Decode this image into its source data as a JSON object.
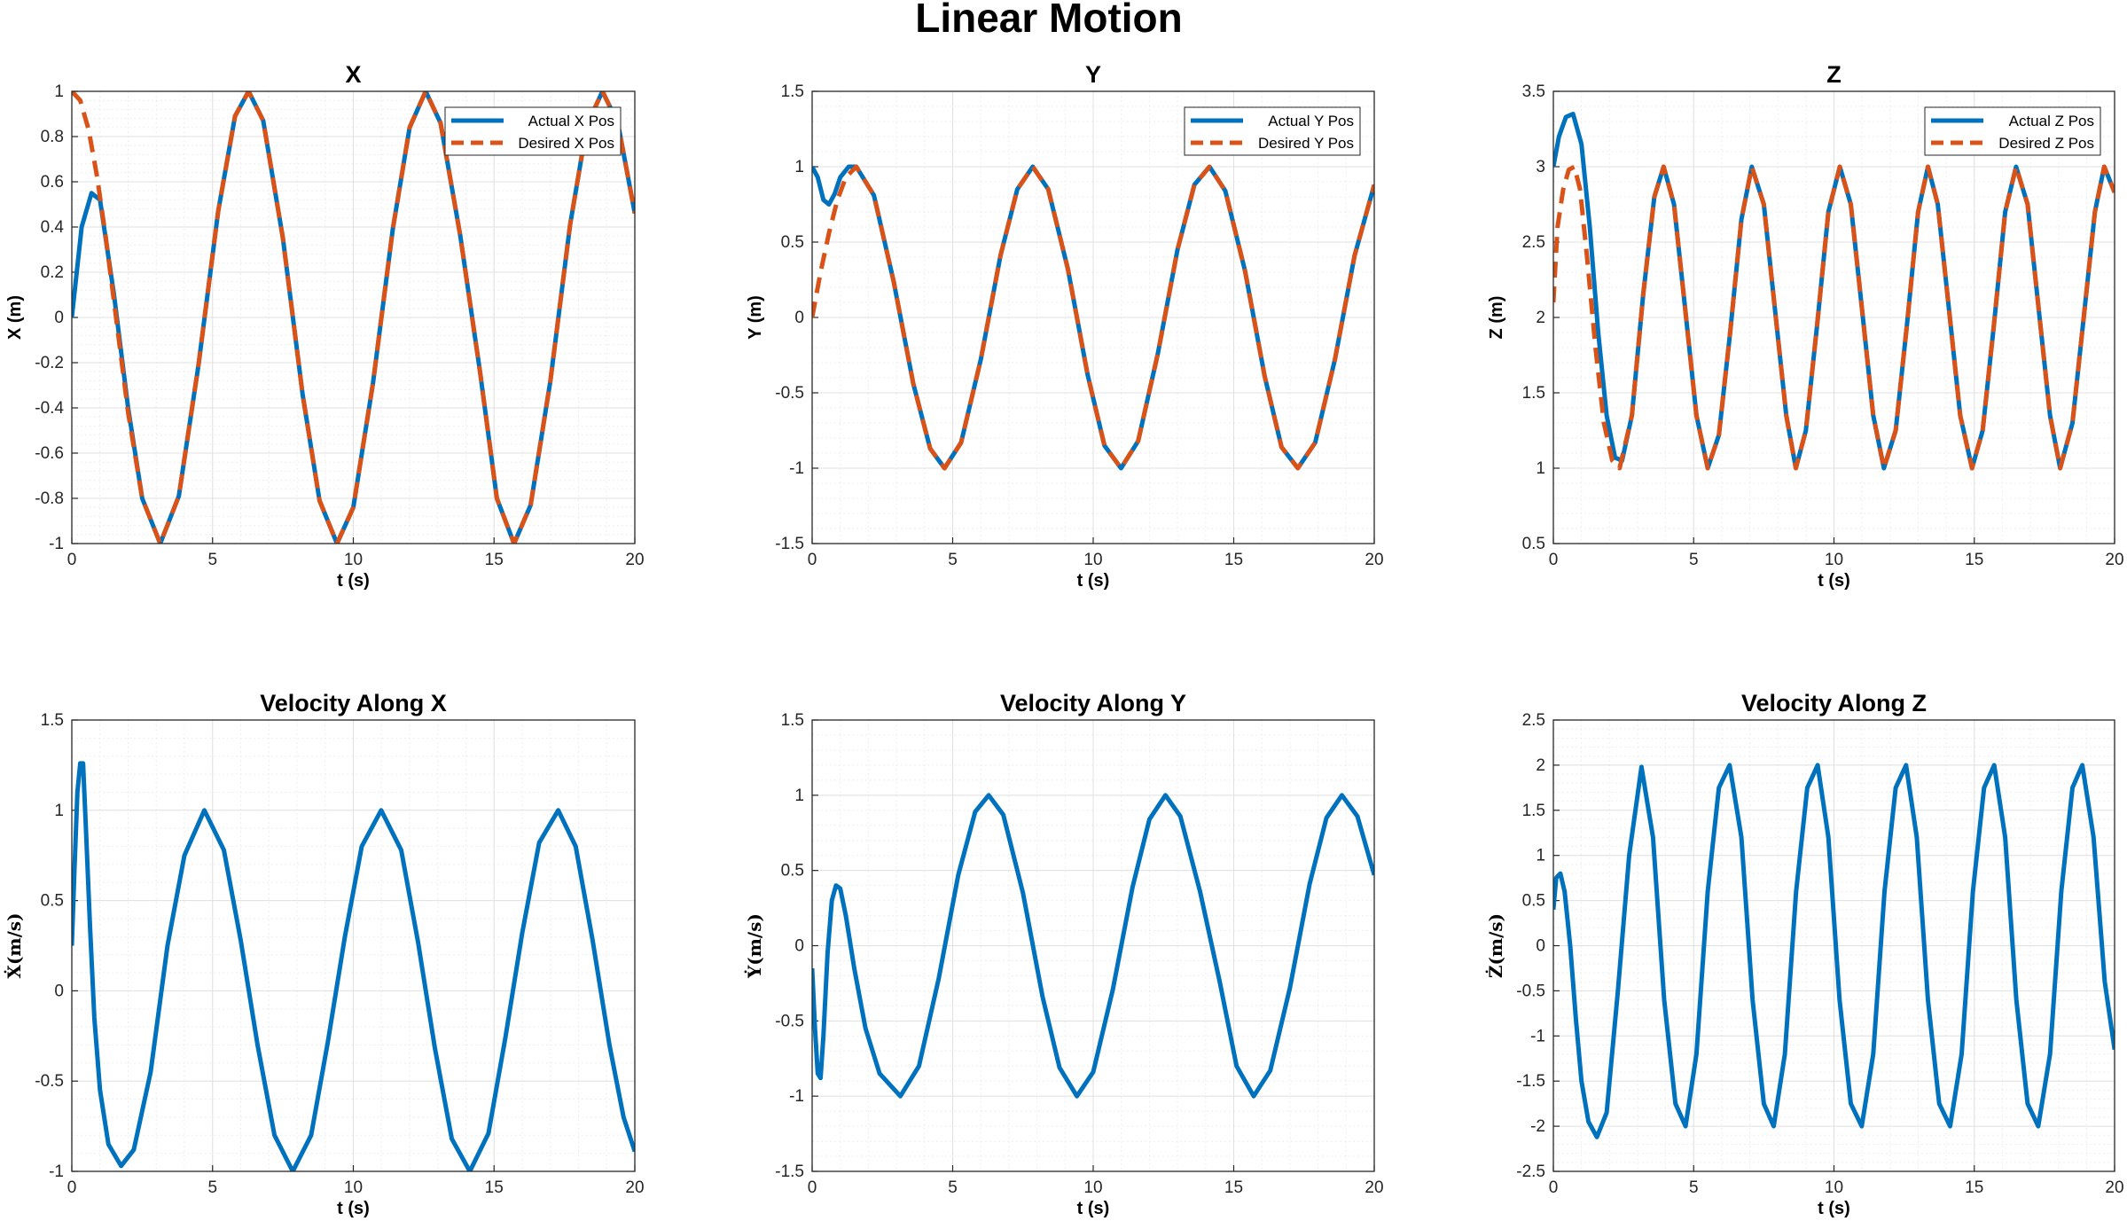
{
  "figure": {
    "title": "Linear Motion"
  },
  "colors": {
    "actual": "#0072BD",
    "desired": "#D95319",
    "grid": "#e0e0e0",
    "axis": "#262626"
  },
  "chart_data": [
    {
      "type": "line",
      "title": "X",
      "xlabel": "t (s)",
      "ylabel": "X (m)",
      "xlim": [
        0,
        20
      ],
      "ylim": [
        -1,
        1
      ],
      "xticks": [
        0,
        5,
        10,
        15,
        20
      ],
      "yticks": [
        -1,
        -0.8,
        -0.6,
        -0.4,
        -0.2,
        0,
        0.2,
        0.4,
        0.6,
        0.8,
        1
      ],
      "ytick_labels": [
        "-1",
        "-0.8",
        "-0.6",
        "-0.4",
        "-0.2",
        "0",
        "0.2",
        "0.4",
        "0.6",
        "0.8",
        "1"
      ],
      "grid": true,
      "legend": "top-right",
      "series": [
        {
          "name": "Actual X Pos",
          "style": "solid",
          "x": [
            0,
            0.35,
            0.7,
            1.0,
            1.5,
            2.0,
            2.5,
            3.14,
            3.8,
            4.5,
            5.2,
            5.8,
            6.28,
            6.8,
            7.5,
            8.2,
            8.8,
            9.42,
            10.0,
            10.7,
            11.4,
            12.0,
            12.57,
            13.1,
            13.8,
            14.5,
            15.1,
            15.71,
            16.3,
            17.0,
            17.7,
            18.3,
            18.85,
            19.4,
            20.0
          ],
          "y": [
            0.0,
            0.4,
            0.55,
            0.52,
            0.1,
            -0.4,
            -0.8,
            -1.0,
            -0.79,
            -0.21,
            0.47,
            0.89,
            1.0,
            0.87,
            0.35,
            -0.34,
            -0.81,
            -1.0,
            -0.84,
            -0.29,
            0.39,
            0.84,
            1.0,
            0.86,
            0.36,
            -0.24,
            -0.8,
            -1.0,
            -0.83,
            -0.28,
            0.41,
            0.85,
            1.0,
            0.86,
            0.46
          ]
        },
        {
          "name": "Desired X Pos",
          "style": "dashed",
          "x": [
            0,
            0.3,
            0.6,
            0.9,
            1.2,
            1.5,
            2.0,
            2.5,
            3.14,
            3.8,
            4.5,
            5.2,
            5.8,
            6.28,
            6.8,
            7.5,
            8.2,
            8.8,
            9.42,
            10.0,
            10.7,
            11.4,
            12.0,
            12.57,
            13.1,
            13.8,
            14.5,
            15.1,
            15.71,
            16.3,
            17.0,
            17.7,
            18.3,
            18.85,
            19.4,
            20.0
          ],
          "y": [
            1.0,
            0.96,
            0.83,
            0.62,
            0.36,
            0.07,
            -0.42,
            -0.8,
            -1.0,
            -0.79,
            -0.21,
            0.47,
            0.89,
            1.0,
            0.87,
            0.35,
            -0.34,
            -0.81,
            -1.0,
            -0.84,
            -0.29,
            0.39,
            0.84,
            1.0,
            0.86,
            0.36,
            -0.24,
            -0.8,
            -1.0,
            -0.83,
            -0.28,
            0.41,
            0.85,
            1.0,
            0.86,
            0.46
          ]
        }
      ]
    },
    {
      "type": "line",
      "title": "Y",
      "xlabel": "t (s)",
      "ylabel": "Y (m)",
      "xlim": [
        0,
        20
      ],
      "ylim": [
        -1.5,
        1.5
      ],
      "xticks": [
        0,
        5,
        10,
        15,
        20
      ],
      "yticks": [
        -1.5,
        -1,
        -0.5,
        0,
        0.5,
        1,
        1.5
      ],
      "ytick_labels": [
        "-1.5",
        "-1",
        "-0.5",
        "0",
        "0.5",
        "1",
        "1.5"
      ],
      "grid": true,
      "legend": "top-right",
      "series": [
        {
          "name": "Actual Y Pos",
          "style": "solid",
          "x": [
            0,
            0.2,
            0.4,
            0.6,
            0.8,
            1.0,
            1.3,
            1.57,
            2.2,
            2.9,
            3.6,
            4.2,
            4.71,
            5.3,
            6.0,
            6.7,
            7.3,
            7.85,
            8.4,
            9.1,
            9.8,
            10.4,
            10.99,
            11.6,
            12.3,
            13.0,
            13.6,
            14.14,
            14.7,
            15.4,
            16.1,
            16.7,
            17.28,
            17.9,
            18.6,
            19.3,
            20.0
          ],
          "y": [
            1.0,
            0.93,
            0.78,
            0.75,
            0.82,
            0.93,
            1.0,
            1.0,
            0.81,
            0.24,
            -0.44,
            -0.87,
            -1.0,
            -0.83,
            -0.28,
            0.41,
            0.85,
            1.0,
            0.85,
            0.32,
            -0.38,
            -0.85,
            -1.0,
            -0.82,
            -0.24,
            0.45,
            0.88,
            1.0,
            0.84,
            0.31,
            -0.39,
            -0.86,
            -1.0,
            -0.83,
            -0.28,
            0.41,
            0.88
          ]
        },
        {
          "name": "Desired Y Pos",
          "style": "dashed",
          "x": [
            0,
            0.3,
            0.6,
            0.9,
            1.2,
            1.57,
            2.2,
            2.9,
            3.6,
            4.2,
            4.71,
            5.3,
            6.0,
            6.7,
            7.3,
            7.85,
            8.4,
            9.1,
            9.8,
            10.4,
            10.99,
            11.6,
            12.3,
            13.0,
            13.6,
            14.14,
            14.7,
            15.4,
            16.1,
            16.7,
            17.28,
            17.9,
            18.6,
            19.3,
            20.0
          ],
          "y": [
            0.0,
            0.3,
            0.56,
            0.78,
            0.93,
            1.0,
            0.81,
            0.24,
            -0.44,
            -0.87,
            -1.0,
            -0.83,
            -0.28,
            0.41,
            0.85,
            1.0,
            0.85,
            0.32,
            -0.38,
            -0.85,
            -1.0,
            -0.82,
            -0.24,
            0.45,
            0.88,
            1.0,
            0.84,
            0.31,
            -0.39,
            -0.86,
            -1.0,
            -0.83,
            -0.28,
            0.41,
            0.88
          ]
        }
      ]
    },
    {
      "type": "line",
      "title": "Z",
      "xlabel": "t (s)",
      "ylabel": "Z (m)",
      "xlim": [
        0,
        20
      ],
      "ylim": [
        0.5,
        3.5
      ],
      "xticks": [
        0,
        5,
        10,
        15,
        20
      ],
      "yticks": [
        0.5,
        1,
        1.5,
        2,
        2.5,
        3,
        3.5
      ],
      "ytick_labels": [
        "0.5",
        "1",
        "1.5",
        "2",
        "2.5",
        "3",
        "3.5"
      ],
      "grid": true,
      "legend": "top-right",
      "series": [
        {
          "name": "Actual Z Pos",
          "style": "solid",
          "x": [
            0,
            0.2,
            0.45,
            0.7,
            1.0,
            1.3,
            1.6,
            1.9,
            2.2,
            2.45,
            2.8,
            3.2,
            3.6,
            3.93,
            4.3,
            4.7,
            5.1,
            5.5,
            5.9,
            6.3,
            6.7,
            7.07,
            7.5,
            7.9,
            8.3,
            8.64,
            9.0,
            9.4,
            9.8,
            10.21,
            10.6,
            11.0,
            11.4,
            11.78,
            12.2,
            12.6,
            13.0,
            13.35,
            13.7,
            14.1,
            14.5,
            14.92,
            15.3,
            15.7,
            16.1,
            16.49,
            16.9,
            17.3,
            17.7,
            18.06,
            18.5,
            18.9,
            19.3,
            19.63,
            20.0
          ],
          "y": [
            3.0,
            3.2,
            3.33,
            3.35,
            3.15,
            2.6,
            1.9,
            1.35,
            1.07,
            1.05,
            1.35,
            2.15,
            2.8,
            3.0,
            2.75,
            2.05,
            1.35,
            1.0,
            1.22,
            1.9,
            2.65,
            3.0,
            2.75,
            2.05,
            1.35,
            1.0,
            1.25,
            1.95,
            2.7,
            3.0,
            2.75,
            2.05,
            1.35,
            1.0,
            1.25,
            1.95,
            2.7,
            3.0,
            2.75,
            2.05,
            1.35,
            1.0,
            1.25,
            1.95,
            2.7,
            3.0,
            2.75,
            2.05,
            1.35,
            1.0,
            1.3,
            2.0,
            2.7,
            3.0,
            2.83
          ]
        },
        {
          "name": "Desired Z Pos",
          "style": "dashed",
          "x": [
            0,
            0.15,
            0.35,
            0.55,
            0.75,
            0.95,
            1.2,
            1.5,
            1.8,
            2.1,
            2.36,
            2.8,
            3.2,
            3.6,
            3.93,
            4.3,
            4.7,
            5.1,
            5.5,
            5.9,
            6.3,
            6.7,
            7.07,
            7.5,
            7.9,
            8.3,
            8.64,
            9.0,
            9.4,
            9.8,
            10.21,
            10.6,
            11.0,
            11.4,
            11.78,
            12.2,
            12.6,
            13.0,
            13.35,
            13.7,
            14.1,
            14.5,
            14.92,
            15.3,
            15.7,
            16.1,
            16.49,
            16.9,
            17.3,
            17.7,
            18.06,
            18.5,
            18.9,
            19.3,
            19.63,
            20.0
          ],
          "y": [
            2.1,
            2.6,
            2.85,
            2.98,
            3.0,
            2.85,
            2.4,
            1.8,
            1.3,
            1.05,
            1.0,
            1.35,
            2.15,
            2.8,
            3.0,
            2.75,
            2.05,
            1.35,
            1.0,
            1.22,
            1.9,
            2.65,
            3.0,
            2.75,
            2.05,
            1.35,
            1.0,
            1.25,
            1.95,
            2.7,
            3.0,
            2.75,
            2.05,
            1.35,
            1.0,
            1.25,
            1.95,
            2.7,
            3.0,
            2.75,
            2.05,
            1.35,
            1.0,
            1.25,
            1.95,
            2.7,
            3.0,
            2.75,
            2.05,
            1.35,
            1.0,
            1.3,
            2.0,
            2.7,
            3.0,
            2.83
          ]
        }
      ]
    },
    {
      "type": "line",
      "title": "Velocity Along X",
      "xlabel": "t (s)",
      "ylabel": "Ẋ(m/s)",
      "xlim": [
        0,
        20
      ],
      "ylim": [
        -1,
        1.5
      ],
      "xticks": [
        0,
        5,
        10,
        15,
        20
      ],
      "yticks": [
        -1,
        -0.5,
        0,
        0.5,
        1,
        1.5
      ],
      "ytick_labels": [
        "-1",
        "-0.5",
        "0",
        "0.5",
        "1",
        "1.5"
      ],
      "grid": true,
      "legend": "none",
      "series": [
        {
          "name": "",
          "style": "solid",
          "x": [
            0,
            0.1,
            0.2,
            0.3,
            0.4,
            0.5,
            0.65,
            0.8,
            1.0,
            1.3,
            1.75,
            2.2,
            2.8,
            3.4,
            4.0,
            4.71,
            5.4,
            6.0,
            6.6,
            7.2,
            7.85,
            8.5,
            9.1,
            9.7,
            10.3,
            10.99,
            11.7,
            12.3,
            12.9,
            13.5,
            14.14,
            14.8,
            15.4,
            16.0,
            16.6,
            17.28,
            17.9,
            18.5,
            19.1,
            19.6,
            20.0
          ],
          "y": [
            0.25,
            0.7,
            1.1,
            1.26,
            1.26,
            0.9,
            0.35,
            -0.15,
            -0.55,
            -0.85,
            -0.97,
            -0.88,
            -0.45,
            0.25,
            0.75,
            1.0,
            0.78,
            0.28,
            -0.3,
            -0.8,
            -1.0,
            -0.8,
            -0.28,
            0.3,
            0.8,
            1.0,
            0.78,
            0.27,
            -0.32,
            -0.82,
            -1.0,
            -0.79,
            -0.26,
            0.32,
            0.82,
            1.0,
            0.8,
            0.28,
            -0.3,
            -0.7,
            -0.89
          ]
        }
      ]
    },
    {
      "type": "line",
      "title": "Velocity Along Y",
      "xlabel": "t (s)",
      "ylabel": "Ẏ(m/s)",
      "xlim": [
        0,
        20
      ],
      "ylim": [
        -1.5,
        1.5
      ],
      "xticks": [
        0,
        5,
        10,
        15,
        20
      ],
      "yticks": [
        -1.5,
        -1,
        -0.5,
        0,
        0.5,
        1,
        1.5
      ],
      "ytick_labels": [
        "-1.5",
        "-1",
        "-0.5",
        "0",
        "0.5",
        "1",
        "1.5"
      ],
      "grid": true,
      "legend": "none",
      "series": [
        {
          "name": "",
          "style": "solid",
          "x": [
            0,
            0.1,
            0.2,
            0.3,
            0.4,
            0.55,
            0.7,
            0.85,
            1.0,
            1.2,
            1.5,
            1.9,
            2.4,
            3.14,
            3.8,
            4.5,
            5.2,
            5.8,
            6.28,
            6.8,
            7.5,
            8.2,
            8.8,
            9.42,
            10.0,
            10.7,
            11.4,
            12.0,
            12.57,
            13.1,
            13.8,
            14.5,
            15.1,
            15.71,
            16.3,
            17.0,
            17.7,
            18.3,
            18.85,
            19.4,
            20.0
          ],
          "y": [
            -0.15,
            -0.55,
            -0.85,
            -0.88,
            -0.6,
            -0.05,
            0.3,
            0.4,
            0.38,
            0.2,
            -0.15,
            -0.55,
            -0.85,
            -1.0,
            -0.8,
            -0.22,
            0.47,
            0.89,
            1.0,
            0.87,
            0.35,
            -0.34,
            -0.81,
            -1.0,
            -0.84,
            -0.29,
            0.39,
            0.84,
            1.0,
            0.86,
            0.36,
            -0.24,
            -0.8,
            -1.0,
            -0.83,
            -0.28,
            0.41,
            0.85,
            1.0,
            0.86,
            0.47
          ]
        }
      ]
    },
    {
      "type": "line",
      "title": "Velocity Along Z",
      "xlabel": "t (s)",
      "ylabel": "Ż(m/s)",
      "xlim": [
        0,
        20
      ],
      "ylim": [
        -2.5,
        2.5
      ],
      "xticks": [
        0,
        5,
        10,
        15,
        20
      ],
      "yticks": [
        -2.5,
        -2,
        -1.5,
        -1,
        -0.5,
        0,
        0.5,
        1,
        1.5,
        2,
        2.5
      ],
      "ytick_labels": [
        "-2.5",
        "-2",
        "-1.5",
        "-1",
        "-0.5",
        "0",
        "0.5",
        "1",
        "1.5",
        "2",
        "2.5"
      ],
      "grid": true,
      "legend": "none",
      "series": [
        {
          "name": "",
          "style": "solid",
          "x": [
            0,
            0.1,
            0.25,
            0.4,
            0.6,
            0.8,
            1.0,
            1.25,
            1.55,
            1.9,
            2.3,
            2.7,
            3.14,
            3.55,
            3.95,
            4.35,
            4.71,
            5.1,
            5.5,
            5.9,
            6.28,
            6.7,
            7.1,
            7.5,
            7.85,
            8.25,
            8.65,
            9.05,
            9.42,
            9.8,
            10.2,
            10.6,
            10.99,
            11.4,
            11.8,
            12.2,
            12.57,
            12.95,
            13.35,
            13.75,
            14.14,
            14.55,
            14.95,
            15.35,
            15.71,
            16.1,
            16.5,
            16.9,
            17.28,
            17.7,
            18.1,
            18.5,
            18.85,
            19.25,
            19.65,
            20.0
          ],
          "y": [
            0.4,
            0.75,
            0.8,
            0.6,
            0.0,
            -0.8,
            -1.5,
            -1.95,
            -2.12,
            -1.85,
            -0.5,
            1.0,
            1.98,
            1.2,
            -0.6,
            -1.75,
            -2.0,
            -1.2,
            0.6,
            1.75,
            2.0,
            1.2,
            -0.6,
            -1.75,
            -2.0,
            -1.2,
            0.6,
            1.75,
            2.0,
            1.2,
            -0.6,
            -1.75,
            -2.0,
            -1.2,
            0.6,
            1.75,
            2.0,
            1.2,
            -0.6,
            -1.75,
            -2.0,
            -1.2,
            0.6,
            1.75,
            2.0,
            1.2,
            -0.6,
            -1.75,
            -2.0,
            -1.2,
            0.6,
            1.75,
            2.0,
            1.2,
            -0.4,
            -1.15
          ]
        }
      ]
    }
  ]
}
